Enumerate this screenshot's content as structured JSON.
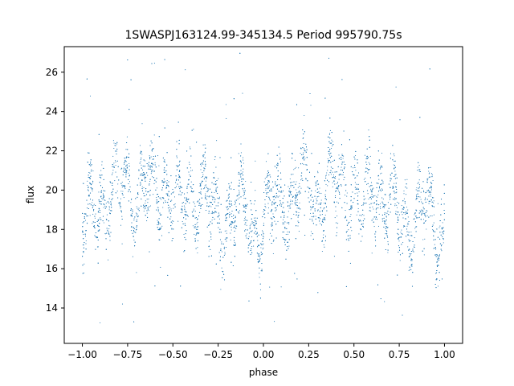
{
  "chart_data": {
    "type": "scatter",
    "title": "1SWASPJ163124.99-345134.5 Period 995790.75s",
    "xlabel": "phase",
    "ylabel": "flux",
    "xlim": [
      -1.1,
      1.1
    ],
    "ylim": [
      12.2,
      27.3
    ],
    "xticks": [
      -1.0,
      -0.75,
      -0.5,
      -0.25,
      0.0,
      0.25,
      0.5,
      0.75,
      1.0
    ],
    "xtick_labels": [
      "−1.00",
      "−0.75",
      "−0.50",
      "−0.25",
      "0.00",
      "0.25",
      "0.50",
      "0.75",
      "1.00"
    ],
    "yticks": [
      14,
      16,
      18,
      20,
      22,
      24,
      26
    ],
    "ytick_labels": [
      "14",
      "16",
      "18",
      "20",
      "22",
      "24",
      "26"
    ],
    "grid": false,
    "legend": "none",
    "marker_color": "#1f77b4",
    "series": [
      {
        "description": "folded light curve, phase -1..1, approx 8000 points",
        "x": [
          -1.0,
          -0.98,
          -0.95,
          -0.9,
          -0.85,
          -0.8,
          -0.75,
          -0.7,
          -0.65,
          -0.6,
          -0.55,
          -0.5,
          -0.45,
          -0.4,
          -0.35,
          -0.3,
          -0.25,
          -0.2,
          -0.15,
          -0.1,
          -0.05,
          0.0,
          0.05,
          0.1,
          0.15,
          0.2,
          0.25,
          0.3,
          0.35,
          0.4,
          0.45,
          0.5,
          0.55,
          0.6,
          0.65,
          0.7,
          0.75,
          0.8,
          0.85,
          0.9,
          0.95,
          1.0
        ],
        "y": [
          18.0,
          17.8,
          19.2,
          19.6,
          19.5,
          20.0,
          20.6,
          19.4,
          20.2,
          20.0,
          20.4,
          19.6,
          19.0,
          20.2,
          19.8,
          19.0,
          18.6,
          18.6,
          18.8,
          19.2,
          18.0,
          18.0,
          19.4,
          19.8,
          19.5,
          20.0,
          20.6,
          19.4,
          20.2,
          20.0,
          20.4,
          19.6,
          19.0,
          20.2,
          19.8,
          19.0,
          18.6,
          18.6,
          18.8,
          19.2,
          18.0,
          18.0
        ]
      }
    ]
  }
}
